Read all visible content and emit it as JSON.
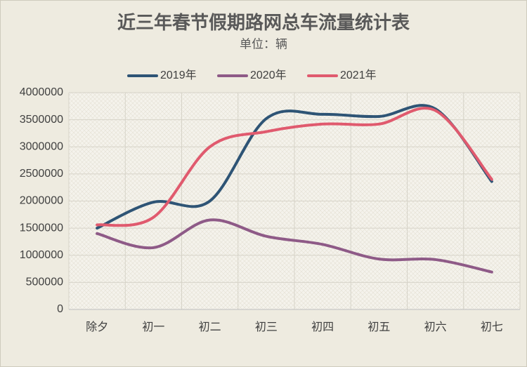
{
  "chart_data": {
    "type": "line",
    "title": "近三年春节假期路网总车流量统计表",
    "subtitle": "单位：辆",
    "categories": [
      "除夕",
      "初一",
      "初二",
      "初三",
      "初四",
      "初五",
      "初六",
      "初七"
    ],
    "series": [
      {
        "name": "2019年",
        "color": "#2e5475",
        "values": [
          1500000,
          1980000,
          2000000,
          3520000,
          3600000,
          3560000,
          3700000,
          2360000
        ]
      },
      {
        "name": "2020年",
        "color": "#8e5a87",
        "values": [
          1400000,
          1140000,
          1650000,
          1350000,
          1200000,
          930000,
          920000,
          690000
        ]
      },
      {
        "name": "2021年",
        "color": "#e05a6e",
        "values": [
          1560000,
          1700000,
          3000000,
          3280000,
          3420000,
          3420000,
          3670000,
          2400000
        ]
      }
    ],
    "ylim": [
      0,
      4000000
    ],
    "yticks": [
      0,
      500000,
      1000000,
      1500000,
      2000000,
      2500000,
      3000000,
      3500000,
      4000000
    ],
    "grid": true,
    "legend": "top",
    "smooth": true
  }
}
